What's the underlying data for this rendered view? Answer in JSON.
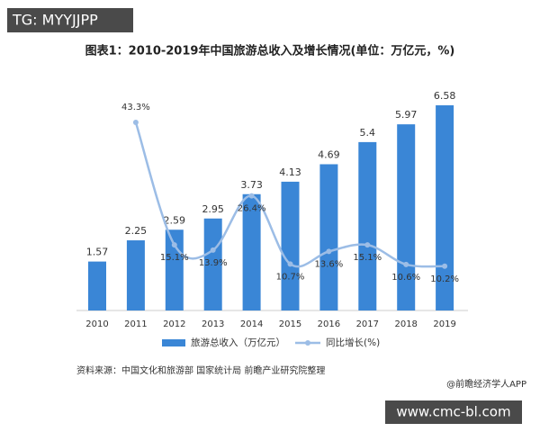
{
  "watermark": "TG: MYYJJPP",
  "chart_data": {
    "type": "bar-line",
    "title": "图表1：2010-2019年中国旅游总收入及增长情况(单位：万亿元，%)",
    "categories": [
      "2010",
      "2011",
      "2012",
      "2013",
      "2014",
      "2015",
      "2016",
      "2017",
      "2018",
      "2019"
    ],
    "series": [
      {
        "name": "旅游总收入（万亿元）",
        "type": "bar",
        "color": "#3a86d6",
        "values": [
          1.57,
          2.25,
          2.59,
          2.95,
          3.73,
          4.13,
          4.69,
          5.4,
          5.97,
          6.58
        ]
      },
      {
        "name": "同比增长(%)",
        "type": "line",
        "axis": "y2",
        "color": "#9cbde6",
        "values": [
          null,
          43.3,
          15.1,
          13.9,
          26.4,
          10.7,
          13.6,
          15.1,
          10.6,
          10.2
        ],
        "value_labels": [
          null,
          "43.3%",
          "15.1%",
          "13.9%",
          "26.4%",
          "10.7%",
          "13.6%",
          "15.1%",
          "10.6%",
          "10.2%"
        ]
      }
    ],
    "legend": "bottom",
    "source": "资料来源：中国文化和旅游部 国家统计局 前瞻产业研究院整理"
  },
  "credit": "@前瞻经济学人APP",
  "site": "www.cmc-bl.com"
}
